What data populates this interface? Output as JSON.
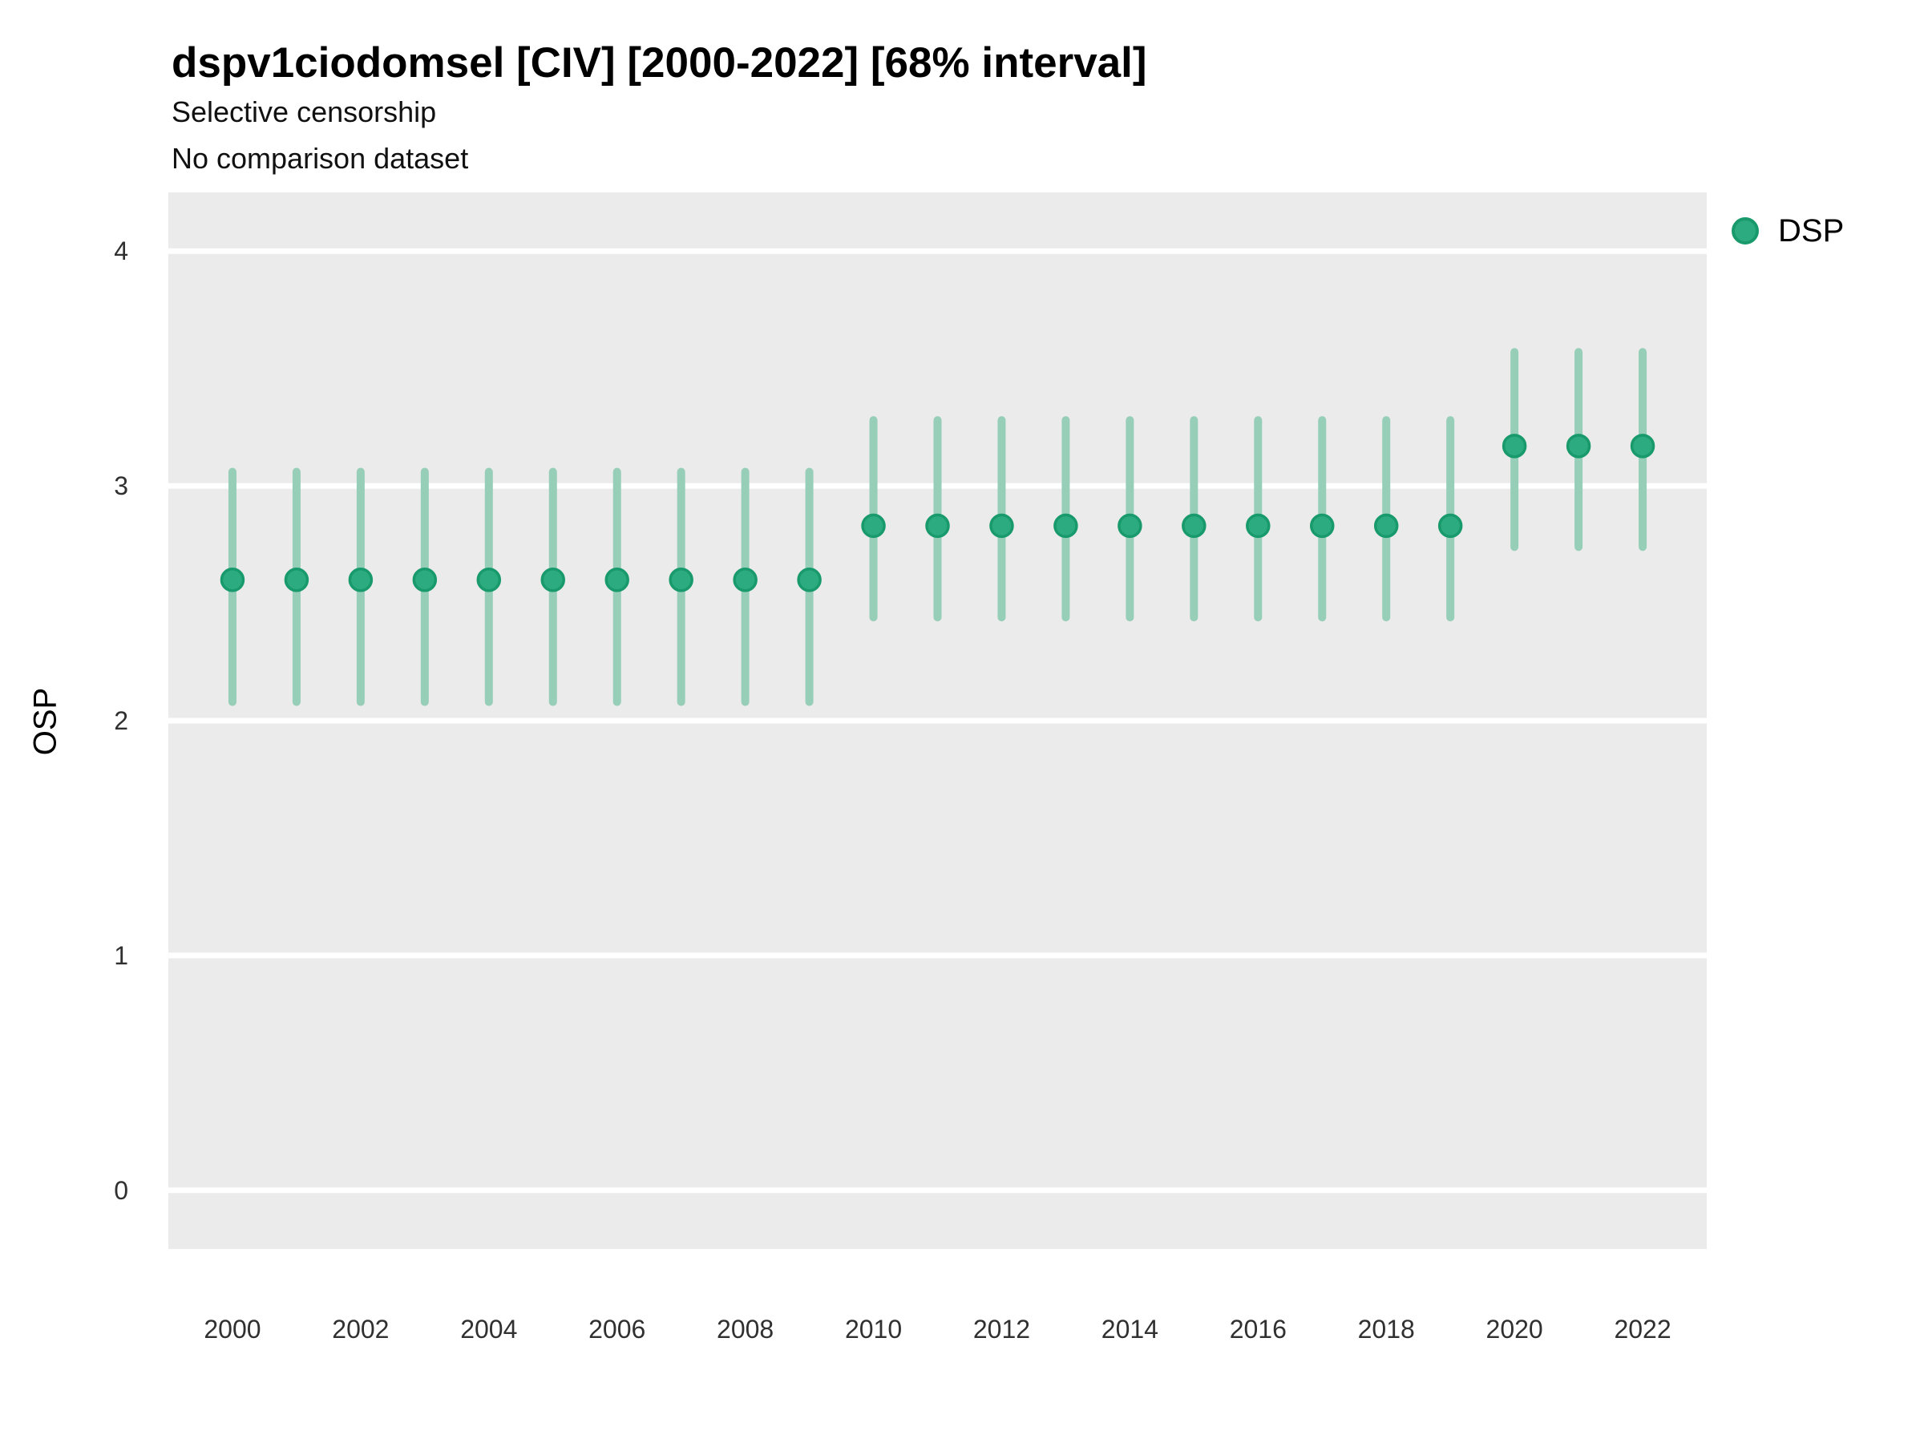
{
  "header": {
    "title": "dspv1ciodomsel [CIV] [2000-2022] [68% interval]",
    "subtitle1": "Selective censorship",
    "subtitle2": "No comparison dataset"
  },
  "legend": {
    "position": "right-top",
    "items": [
      {
        "label": "DSP",
        "marker": "circle"
      }
    ]
  },
  "colors": {
    "point_fill": "#2caa80",
    "point_stroke": "#189a6c",
    "interval_bar": "#96ceb8",
    "panel_background": "#ebebeb",
    "grid_line": "#ffffff",
    "tick_text": "#303030",
    "text": "#000000"
  },
  "chart_data": {
    "type": "scatter",
    "subtype": "pointrange-errorbar",
    "title": "dspv1ciodomsel [CIV] [2000-2022] [68% interval]",
    "subtitle": [
      "Selective censorship",
      "No comparison dataset"
    ],
    "xlabel": "",
    "ylabel": "OSP",
    "interval_label": "68% interval",
    "grid": "horizontal-only",
    "legend_position": "right-top",
    "xlim": [
      1999,
      2023
    ],
    "ylim": [
      -0.25,
      4.25
    ],
    "yticks": [
      0,
      1,
      2,
      3,
      4
    ],
    "xticks": [
      2000,
      2002,
      2004,
      2006,
      2008,
      2010,
      2012,
      2014,
      2016,
      2018,
      2020,
      2022
    ],
    "series": [
      {
        "name": "DSP",
        "points": [
          {
            "x": 2000,
            "y": 2.6,
            "lo": 2.08,
            "hi": 3.06
          },
          {
            "x": 2001,
            "y": 2.6,
            "lo": 2.08,
            "hi": 3.06
          },
          {
            "x": 2002,
            "y": 2.6,
            "lo": 2.08,
            "hi": 3.06
          },
          {
            "x": 2003,
            "y": 2.6,
            "lo": 2.08,
            "hi": 3.06
          },
          {
            "x": 2004,
            "y": 2.6,
            "lo": 2.08,
            "hi": 3.06
          },
          {
            "x": 2005,
            "y": 2.6,
            "lo": 2.08,
            "hi": 3.06
          },
          {
            "x": 2006,
            "y": 2.6,
            "lo": 2.08,
            "hi": 3.06
          },
          {
            "x": 2007,
            "y": 2.6,
            "lo": 2.08,
            "hi": 3.06
          },
          {
            "x": 2008,
            "y": 2.6,
            "lo": 2.08,
            "hi": 3.06
          },
          {
            "x": 2009,
            "y": 2.6,
            "lo": 2.08,
            "hi": 3.06
          },
          {
            "x": 2010,
            "y": 2.83,
            "lo": 2.44,
            "hi": 3.28
          },
          {
            "x": 2011,
            "y": 2.83,
            "lo": 2.44,
            "hi": 3.28
          },
          {
            "x": 2012,
            "y": 2.83,
            "lo": 2.44,
            "hi": 3.28
          },
          {
            "x": 2013,
            "y": 2.83,
            "lo": 2.44,
            "hi": 3.28
          },
          {
            "x": 2014,
            "y": 2.83,
            "lo": 2.44,
            "hi": 3.28
          },
          {
            "x": 2015,
            "y": 2.83,
            "lo": 2.44,
            "hi": 3.28
          },
          {
            "x": 2016,
            "y": 2.83,
            "lo": 2.44,
            "hi": 3.28
          },
          {
            "x": 2017,
            "y": 2.83,
            "lo": 2.44,
            "hi": 3.28
          },
          {
            "x": 2018,
            "y": 2.83,
            "lo": 2.44,
            "hi": 3.28
          },
          {
            "x": 2019,
            "y": 2.83,
            "lo": 2.44,
            "hi": 3.28
          },
          {
            "x": 2020,
            "y": 3.17,
            "lo": 2.74,
            "hi": 3.57
          },
          {
            "x": 2021,
            "y": 3.17,
            "lo": 2.74,
            "hi": 3.57
          },
          {
            "x": 2022,
            "y": 3.17,
            "lo": 2.74,
            "hi": 3.57
          }
        ]
      }
    ]
  }
}
